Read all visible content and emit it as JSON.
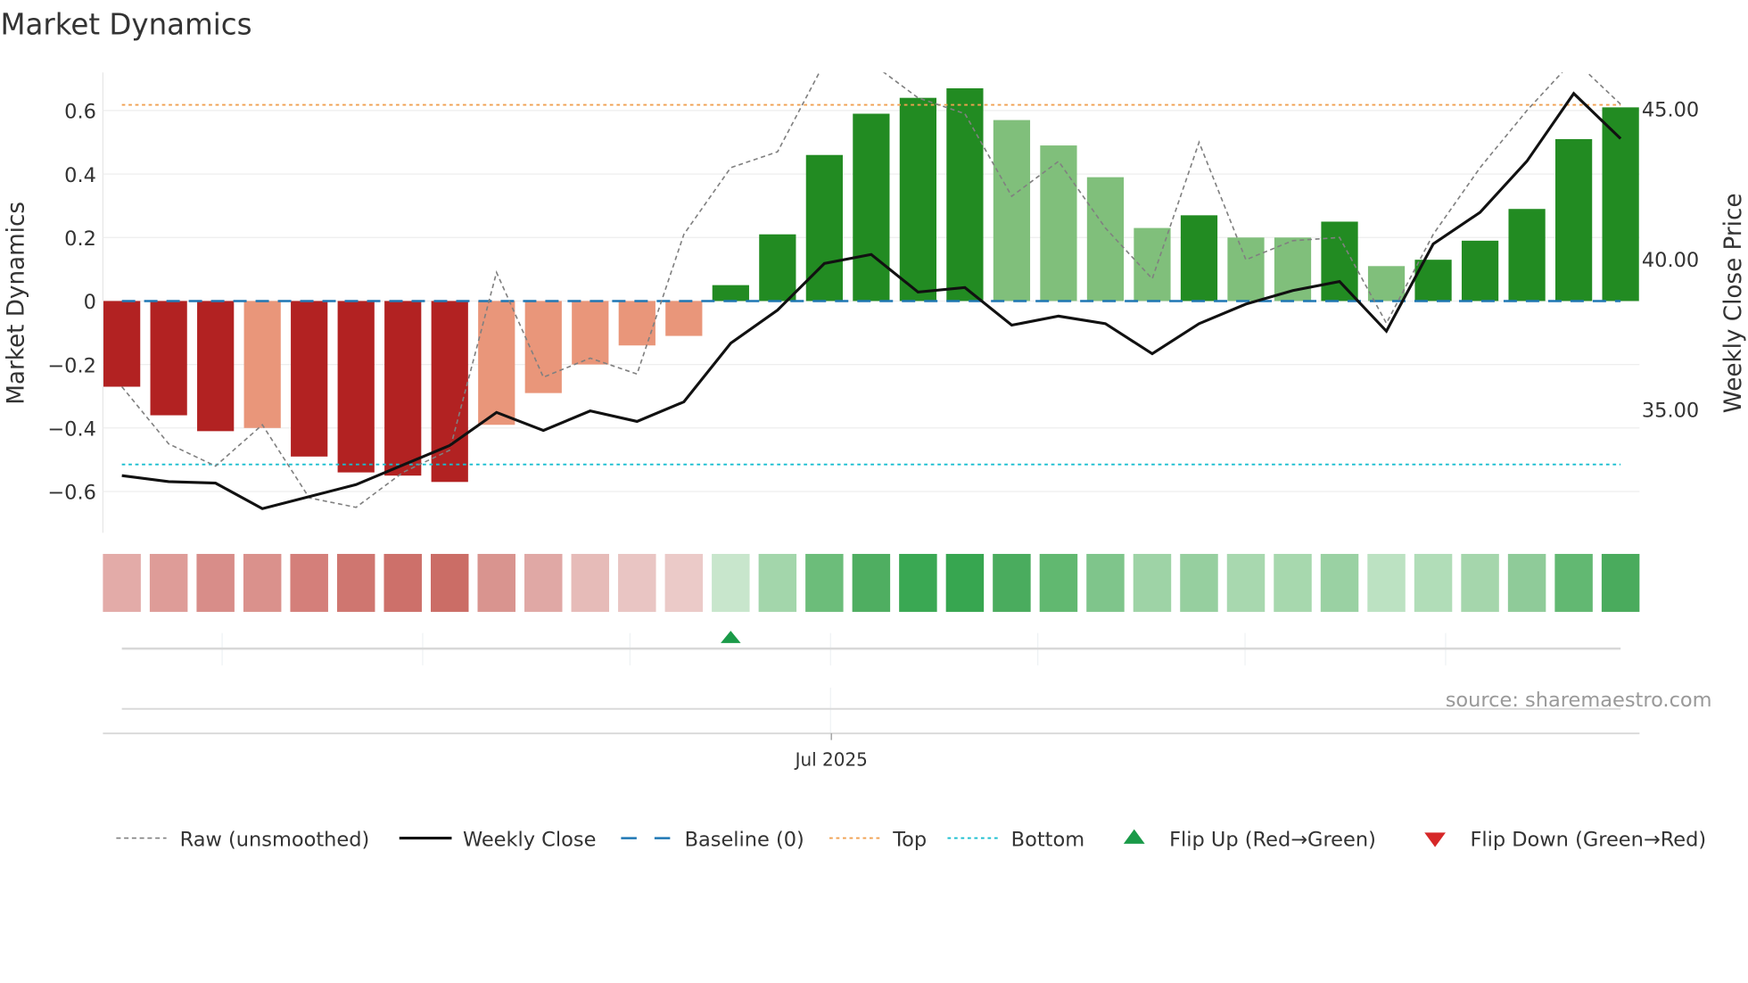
{
  "chart_data": {
    "type": "bar",
    "title": "Market Dynamics",
    "ylabel": "Market Dynamics",
    "y2label": "Weekly Close Price",
    "ylim": [
      -0.73,
      0.72
    ],
    "y2lim": [
      30.9,
      46.2
    ],
    "yticks": [
      -0.6,
      -0.4,
      -0.2,
      0,
      0.2,
      0.4,
      0.6
    ],
    "ytick_labels": [
      "−0.6",
      "−0.4",
      "−0.2",
      "0",
      "0.2",
      "0.4",
      "0.6"
    ],
    "y2ticks": [
      35,
      40,
      45
    ],
    "y2tick_labels": [
      "35.00",
      "40.00",
      "45.00"
    ],
    "xtick_label": "Jul 2025",
    "xtick_index": 15.15,
    "top_level": 0.618,
    "bottom_level": -0.515,
    "baseline": 0,
    "source": "source: sharemaestro.com",
    "bars": {
      "values": [
        -0.27,
        -0.36,
        -0.41,
        -0.4,
        -0.49,
        -0.54,
        -0.55,
        -0.57,
        -0.39,
        -0.29,
        -0.2,
        -0.14,
        -0.11,
        0.05,
        0.21,
        0.46,
        0.59,
        0.64,
        0.67,
        0.57,
        0.49,
        0.39,
        0.23,
        0.27,
        0.2,
        0.2,
        0.25,
        0.11,
        0.13,
        0.19,
        0.29,
        0.51,
        0.61
      ],
      "strong": [
        1,
        1,
        1,
        0,
        1,
        1,
        1,
        1,
        0,
        0,
        0,
        0,
        0,
        1,
        1,
        1,
        1,
        1,
        1,
        0,
        0,
        0,
        0,
        1,
        0,
        0,
        1,
        0,
        1,
        1,
        1,
        1,
        1
      ]
    },
    "raw": [
      -0.27,
      -0.45,
      -0.52,
      -0.39,
      -0.62,
      -0.65,
      -0.54,
      -0.47,
      0.09,
      -0.24,
      -0.18,
      -0.23,
      0.21,
      0.42,
      0.47,
      0.75,
      0.75,
      0.64,
      0.59,
      0.33,
      0.44,
      0.23,
      0.07,
      0.5,
      0.13,
      0.19,
      0.2,
      -0.07,
      0.21,
      0.42,
      0.6,
      0.76,
      0.62
    ],
    "weekly_close": [
      32.8,
      32.6,
      32.55,
      31.7,
      32.1,
      32.5,
      33.15,
      33.8,
      34.9,
      34.3,
      34.95,
      34.6,
      35.25,
      37.2,
      38.3,
      39.85,
      40.15,
      38.9,
      39.05,
      37.8,
      38.1,
      37.85,
      36.85,
      37.85,
      38.5,
      38.95,
      39.25,
      37.6,
      40.5,
      41.55,
      43.25,
      45.5,
      44.0
    ],
    "strip_colors": [
      "#e3aba8",
      "#de9c98",
      "#d88d89",
      "#da918c",
      "#d47f7a",
      "#cf7670",
      "#cd706a",
      "#cb6d66",
      "#d9948f",
      "#e0a8a5",
      "#e6bbb8",
      "#e9c5c3",
      "#ebcac8",
      "#c8e6cc",
      "#a3d6ab",
      "#6cbd7a",
      "#4fae61",
      "#3aa853",
      "#37a650",
      "#4aac5e",
      "#61b870",
      "#7fc58b",
      "#9ed3a6",
      "#96cf9f",
      "#a8d8af",
      "#a7d8ae",
      "#9ad1a3",
      "#bce2c2",
      "#b1ddb8",
      "#a5d6ac",
      "#8fcb99",
      "#62b872",
      "#4aab5d"
    ],
    "flip_up_index": [
      13
    ],
    "flip_down_index": [],
    "colors": {
      "strong_red": "#b22222",
      "weak_red": "#e9967a",
      "strong_green": "#228b22",
      "weak_green": "#80bf7b",
      "raw": "#808080",
      "close": "#111111",
      "baseline": "#1f77b4",
      "top": "#f0a050",
      "bottom": "#17becf",
      "flip_up": "#1a9a48",
      "flip_down": "#d62728"
    },
    "legend": [
      {
        "label": "Raw (unsmoothed)",
        "kind": "raw"
      },
      {
        "label": "Weekly Close",
        "kind": "close"
      },
      {
        "label": "Baseline (0)",
        "kind": "baseline"
      },
      {
        "label": "Top",
        "kind": "top"
      },
      {
        "label": "Bottom",
        "kind": "bottom"
      },
      {
        "label": "Flip Up (Red→Green)",
        "kind": "flip_up"
      },
      {
        "label": "Flip Down (Green→Red)",
        "kind": "flip_down"
      }
    ]
  }
}
